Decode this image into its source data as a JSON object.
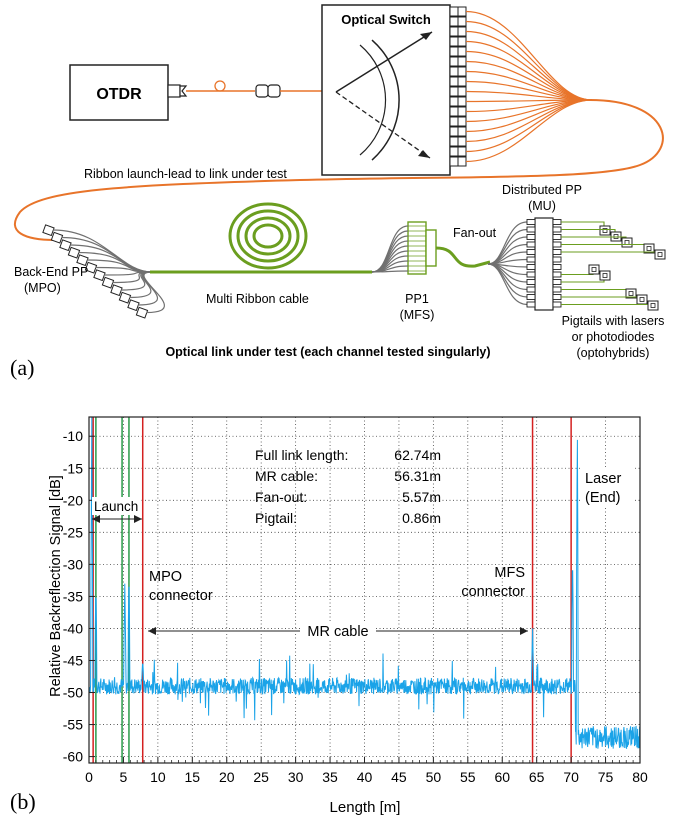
{
  "panel_a": {
    "label": "(a)",
    "otdr_label": "OTDR",
    "switch_label": "Optical Switch",
    "ribbon_lead_label": "Ribbon launch-lead to link under test",
    "distributed_pp_label": [
      "Distributed PP",
      "(MU)"
    ],
    "fanout_label": "Fan-out",
    "backend_pp_label": [
      "Back-End PP",
      "(MPO)"
    ],
    "multi_ribbon_label": "Multi Ribbon cable",
    "pp1_label": [
      "PP1",
      "(MFS)"
    ],
    "pigtails_label": [
      "Pigtails with lasers",
      "or photodiodes",
      "(optohybrids)"
    ],
    "bottom_caption": "Optical link under test (each channel tested singularly)",
    "colors": {
      "fiber_orange": "#e8742a",
      "cable_green": "#6b9e1f",
      "fiber_grey": "#707070"
    }
  },
  "panel_b": {
    "label": "(b)",
    "summary": [
      {
        "name": "Full link length:",
        "value": "62.74m"
      },
      {
        "name": "MR cable:",
        "value": "56.31m"
      },
      {
        "name": "Fan-out:",
        "value": "5.57m"
      },
      {
        "name": "Pigtail:",
        "value": "0.86m"
      }
    ],
    "annotations": {
      "launch": "Launch",
      "mpo": [
        "MPO",
        "connector"
      ],
      "mfs": [
        "MFS",
        "connector"
      ],
      "mr_cable": "MR cable",
      "laser": [
        "Laser",
        "(End)"
      ]
    },
    "colors": {
      "trace": "#1aa3e8",
      "red_marker": "#d42020",
      "green_marker": "#2a9a4a"
    }
  },
  "chart_data": {
    "type": "line",
    "xlabel": "Length [m]",
    "ylabel": "Relative Backreflection Signal [dB]",
    "xlim": [
      0,
      80
    ],
    "ylim": [
      -61,
      -7
    ],
    "x_ticks": [
      0,
      5,
      10,
      15,
      20,
      25,
      30,
      35,
      40,
      45,
      50,
      55,
      60,
      65,
      70,
      75,
      80
    ],
    "y_ticks": [
      -10,
      -15,
      -20,
      -25,
      -30,
      -35,
      -40,
      -45,
      -50,
      -55,
      -60
    ],
    "grid": true,
    "markers": {
      "green": [
        1.0,
        4.8,
        5.8
      ],
      "red": [
        0.6,
        7.8,
        64.4,
        70.0
      ]
    },
    "series": [
      {
        "noise_floor": -49,
        "end_floor": -57,
        "peaks": [
          {
            "x": 0.4,
            "y": -7
          },
          {
            "x": 1.0,
            "y": -33
          },
          {
            "x": 5.2,
            "y": -33
          },
          {
            "x": 5.8,
            "y": -31
          },
          {
            "x": 7.8,
            "y": -45
          },
          {
            "x": 64.4,
            "y": -40
          },
          {
            "x": 70.2,
            "y": -28
          },
          {
            "x": 70.9,
            "y": -7
          }
        ]
      }
    ]
  }
}
